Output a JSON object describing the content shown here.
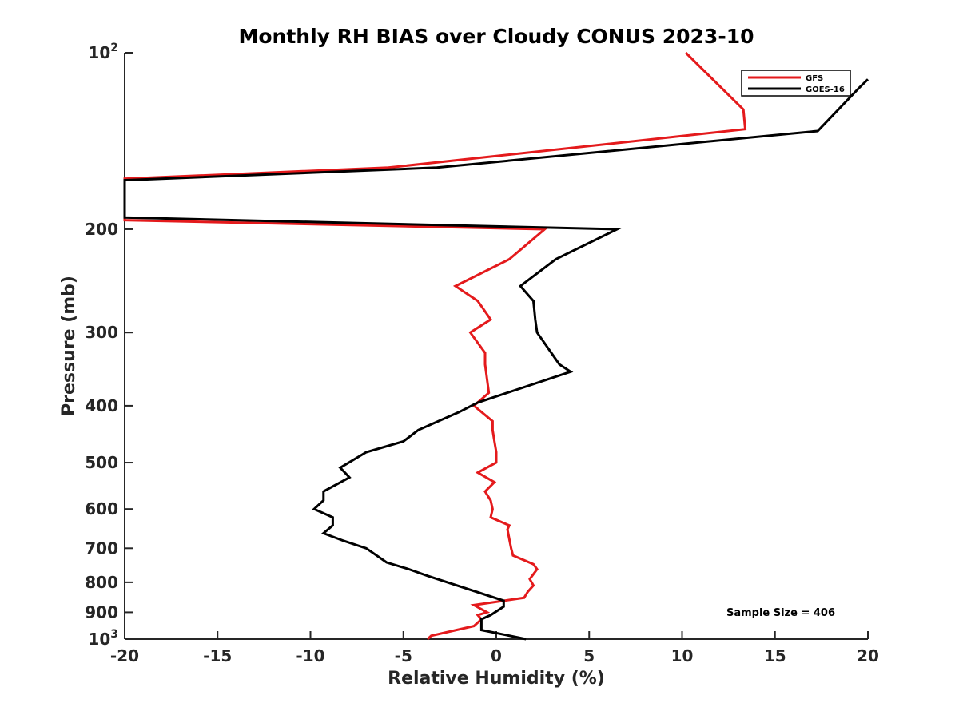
{
  "chart_data": {
    "type": "line",
    "title": "Monthly RH BIAS over Cloudy CONUS  2023-10",
    "xlabel": "Relative Humidity (%)",
    "ylabel": "Pressure (mb)",
    "xlim": [
      -20,
      20
    ],
    "ylim": [
      100,
      1000
    ],
    "y_scale": "log",
    "y_reversed": true,
    "x_ticks": [
      -20,
      -15,
      -10,
      -5,
      0,
      5,
      10,
      15,
      20
    ],
    "x_tick_labels": [
      "-20",
      "-15",
      "-10",
      "-5",
      "0",
      "5",
      "10",
      "15",
      "20"
    ],
    "y_ticks": [
      100,
      200,
      300,
      400,
      500,
      600,
      700,
      800,
      900,
      1000
    ],
    "y_tick_labels": [
      {
        "base": "10",
        "exp": "2"
      },
      {
        "base": "200"
      },
      {
        "base": "300"
      },
      {
        "base": "400"
      },
      {
        "base": "500"
      },
      {
        "base": "600"
      },
      {
        "base": "700"
      },
      {
        "base": "800"
      },
      {
        "base": "900"
      },
      {
        "base": "10",
        "exp": "3"
      }
    ],
    "grid": false,
    "legend_position": "top-right",
    "annotation": "Sample Size = 406",
    "series": [
      {
        "name": "GFS",
        "color": "#e41a1c",
        "points": [
          [
            -3.7,
            1000
          ],
          [
            -3.5,
            987
          ],
          [
            -1.2,
            950
          ],
          [
            -0.8,
            925
          ],
          [
            -1.0,
            910
          ],
          [
            -0.5,
            900
          ],
          [
            -1.2,
            875
          ],
          [
            1.5,
            850
          ],
          [
            1.7,
            830
          ],
          [
            2.0,
            810
          ],
          [
            1.8,
            790
          ],
          [
            2.2,
            760
          ],
          [
            2.0,
            745
          ],
          [
            0.9,
            720
          ],
          [
            0.8,
            700
          ],
          [
            0.7,
            675
          ],
          [
            0.6,
            650
          ],
          [
            0.7,
            640
          ],
          [
            -0.3,
            620
          ],
          [
            -0.2,
            600
          ],
          [
            -0.3,
            580
          ],
          [
            -0.6,
            560
          ],
          [
            -0.1,
            540
          ],
          [
            -1.0,
            520
          ],
          [
            0.0,
            500
          ],
          [
            0.0,
            480
          ],
          [
            -0.1,
            460
          ],
          [
            -0.2,
            440
          ],
          [
            -0.2,
            425
          ],
          [
            -1.2,
            400
          ],
          [
            -0.4,
            380
          ],
          [
            -0.5,
            360
          ],
          [
            -0.6,
            340
          ],
          [
            -0.6,
            325
          ],
          [
            -1.4,
            300
          ],
          [
            -0.3,
            285
          ],
          [
            -1.0,
            265
          ],
          [
            -2.2,
            250
          ],
          [
            0.7,
            225
          ],
          [
            2.6,
            200
          ],
          [
            -20,
            193
          ],
          [
            -20,
            190
          ],
          [
            -20,
            164
          ],
          [
            -5.8,
            157
          ],
          [
            13.4,
            135
          ],
          [
            13.3,
            125
          ],
          [
            10.2,
            100
          ]
        ]
      },
      {
        "name": "GOES-16",
        "color": "#000000",
        "points": [
          [
            1.6,
            1000
          ],
          [
            0.6,
            985
          ],
          [
            -0.8,
            965
          ],
          [
            -0.8,
            950
          ],
          [
            -0.8,
            925
          ],
          [
            -0.3,
            910
          ],
          [
            0.4,
            880
          ],
          [
            0.4,
            860
          ],
          [
            -3.7,
            780
          ],
          [
            -4.7,
            760
          ],
          [
            -5.9,
            740
          ],
          [
            -7.0,
            700
          ],
          [
            -8.2,
            680
          ],
          [
            -9.3,
            660
          ],
          [
            -8.8,
            640
          ],
          [
            -8.8,
            620
          ],
          [
            -9.8,
            600
          ],
          [
            -9.3,
            580
          ],
          [
            -9.3,
            560
          ],
          [
            -7.9,
            530
          ],
          [
            -8.4,
            510
          ],
          [
            -7.0,
            480
          ],
          [
            -5.0,
            460
          ],
          [
            -4.2,
            440
          ],
          [
            -2.0,
            410
          ],
          [
            -1.0,
            395
          ],
          [
            4.0,
            350
          ],
          [
            3.4,
            340
          ],
          [
            2.2,
            300
          ],
          [
            2.1,
            285
          ],
          [
            2.0,
            265
          ],
          [
            1.3,
            250
          ],
          [
            3.2,
            225
          ],
          [
            6.5,
            200
          ],
          [
            -20,
            191
          ],
          [
            -20,
            188
          ],
          [
            -20,
            165
          ],
          [
            -3.2,
            157
          ],
          [
            17.3,
            136
          ],
          [
            19.5,
            115
          ],
          [
            20.0,
            111
          ]
        ]
      }
    ]
  }
}
